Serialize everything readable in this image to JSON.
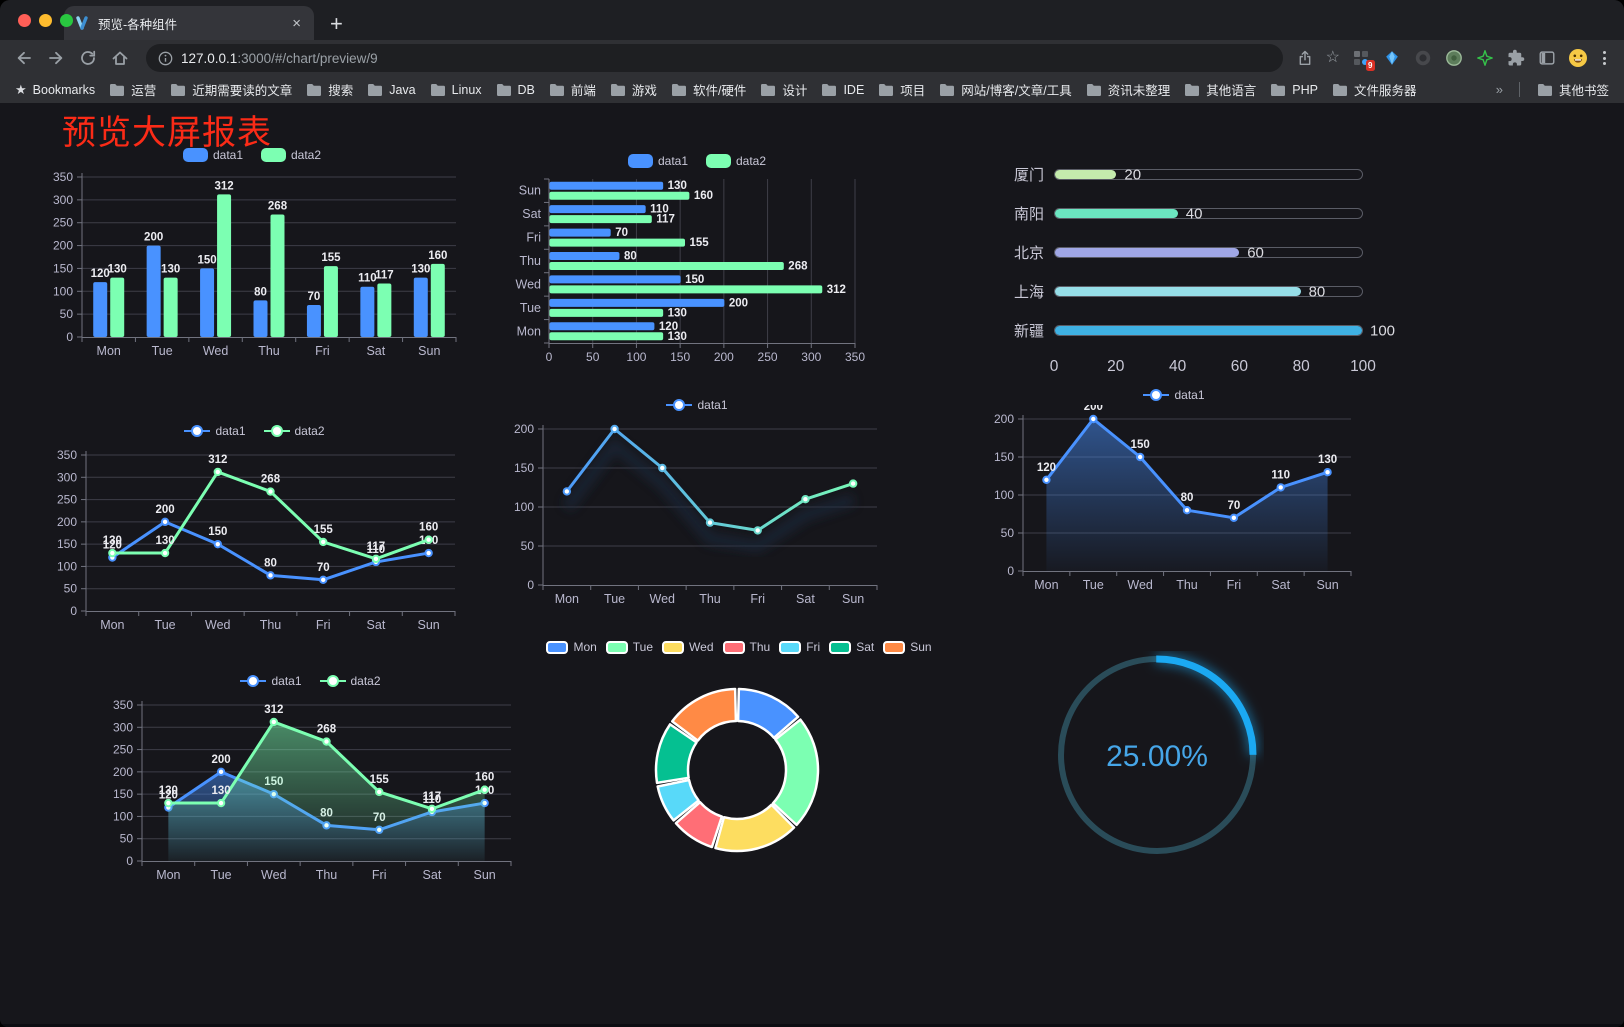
{
  "browser": {
    "tab_title": "预览-各种组件",
    "url_host": "127.0.0.1",
    "url_path": ":3000/#/chart/preview/9",
    "bookmarks_label": "Bookmarks",
    "bookmark_folders": [
      "运营",
      "近期需要读的文章",
      "搜索",
      "Java",
      "Linux",
      "DB",
      "前端",
      "游戏",
      "软件/硬件",
      "设计",
      "IDE",
      "项目",
      "网站/博客/文章/工具",
      "资讯未整理",
      "其他语言",
      "PHP",
      "文件服务器"
    ],
    "bookmarks_overflow": "»",
    "other_bookmarks_label": "其他书签",
    "extension_badge": "9",
    "traffic_colors": [
      "#ff5f57",
      "#febc2e",
      "#29c840"
    ]
  },
  "page": {
    "title": "预览大屏报表",
    "title_color": "#fb2b17",
    "background": "#16161b"
  },
  "theme": {
    "axis_label": "#b9b8ce",
    "grid_line": "rgba(185,184,206,0.25)",
    "axis_line": "#71737f",
    "value_label": "#ececf1",
    "palette": [
      "#4992ff",
      "#7cffb2",
      "#fddd60",
      "#ff6e76",
      "#58d9f9",
      "#05c091",
      "#ff8a45"
    ]
  },
  "chart_data": [
    {
      "id": "grouped-bar",
      "type": "bar",
      "legend": "rect",
      "categories": [
        "Mon",
        "Tue",
        "Wed",
        "Thu",
        "Fri",
        "Sat",
        "Sun"
      ],
      "series": [
        {
          "name": "data1",
          "color": "#4992ff",
          "values": [
            120,
            200,
            150,
            80,
            70,
            110,
            130
          ]
        },
        {
          "name": "data2",
          "color": "#7cffb2",
          "values": [
            130,
            130,
            312,
            268,
            155,
            117,
            160
          ]
        }
      ],
      "ylim": [
        0,
        350
      ],
      "ystep": 50,
      "value_labels": true
    },
    {
      "id": "horizontal-bar",
      "type": "hbar",
      "legend": "rect",
      "categories": [
        "Mon",
        "Tue",
        "Wed",
        "Thu",
        "Fri",
        "Sat",
        "Sun"
      ],
      "series": [
        {
          "name": "data1",
          "color": "#4992ff",
          "values": [
            120,
            200,
            150,
            80,
            70,
            110,
            130
          ]
        },
        {
          "name": "data2",
          "color": "#7cffb2",
          "values": [
            130,
            130,
            312,
            268,
            155,
            117,
            160
          ]
        }
      ],
      "xlim": [
        0,
        350
      ],
      "xstep": 50,
      "value_labels": true
    },
    {
      "id": "progress-bars",
      "type": "progress",
      "xlim": [
        0,
        100
      ],
      "xticks": [
        0,
        20,
        40,
        60,
        80,
        100
      ],
      "rows": [
        {
          "label": "厦门",
          "value": 20,
          "color": "#c4ebad"
        },
        {
          "label": "南阳",
          "value": 40,
          "color": "#6be6c1"
        },
        {
          "label": "北京",
          "value": 60,
          "color": "#a0a7e6"
        },
        {
          "label": "上海",
          "value": 80,
          "color": "#96dee8"
        },
        {
          "label": "新疆",
          "value": 100,
          "color": "#3fb1e3"
        }
      ]
    },
    {
      "id": "line-two-series",
      "type": "line",
      "legend": "line",
      "categories": [
        "Mon",
        "Tue",
        "Wed",
        "Thu",
        "Fri",
        "Sat",
        "Sun"
      ],
      "series": [
        {
          "name": "data1",
          "color": "#4992ff",
          "values": [
            120,
            200,
            150,
            80,
            70,
            110,
            130
          ]
        },
        {
          "name": "data2",
          "color": "#7cffb2",
          "values": [
            130,
            130,
            312,
            268,
            155,
            117,
            160
          ]
        }
      ],
      "ylim": [
        0,
        350
      ],
      "ystep": 50,
      "value_labels": true
    },
    {
      "id": "line-gradient",
      "type": "line",
      "legend": "line",
      "categories": [
        "Mon",
        "Tue",
        "Wed",
        "Thu",
        "Fri",
        "Sat",
        "Sun"
      ],
      "series": [
        {
          "name": "data1",
          "color": "#4992ff",
          "gradient": [
            "#4992ff",
            "#7cffb2"
          ],
          "shadow": true,
          "values": [
            120,
            200,
            150,
            80,
            70,
            110,
            130
          ]
        }
      ],
      "ylim": [
        0,
        200
      ],
      "ystep": 50,
      "value_labels": false
    },
    {
      "id": "line-area",
      "type": "line",
      "legend": "line",
      "categories": [
        "Mon",
        "Tue",
        "Wed",
        "Thu",
        "Fri",
        "Sat",
        "Sun"
      ],
      "series": [
        {
          "name": "data1",
          "color": "#4992ff",
          "area": true,
          "values": [
            120,
            200,
            150,
            80,
            70,
            110,
            130
          ]
        }
      ],
      "ylim": [
        0,
        200
      ],
      "ystep": 50,
      "value_labels": true
    },
    {
      "id": "line-two-areas",
      "type": "line",
      "legend": "line",
      "categories": [
        "Mon",
        "Tue",
        "Wed",
        "Thu",
        "Fri",
        "Sat",
        "Sun"
      ],
      "series": [
        {
          "name": "data1",
          "color": "#4992ff",
          "area": true,
          "values": [
            120,
            200,
            150,
            80,
            70,
            110,
            130
          ]
        },
        {
          "name": "data2",
          "color": "#7cffb2",
          "area": true,
          "values": [
            130,
            130,
            312,
            268,
            155,
            117,
            160
          ]
        }
      ],
      "ylim": [
        0,
        350
      ],
      "ystep": 50,
      "value_labels": true
    },
    {
      "id": "donut",
      "type": "pie",
      "legend": "pie",
      "items": [
        {
          "name": "Mon",
          "value": 120,
          "color": "#4992ff"
        },
        {
          "name": "Tue",
          "value": 200,
          "color": "#7cffb2"
        },
        {
          "name": "Wed",
          "value": 150,
          "color": "#fddd60"
        },
        {
          "name": "Thu",
          "value": 80,
          "color": "#ff6e76"
        },
        {
          "name": "Fri",
          "value": 70,
          "color": "#58d9f9"
        },
        {
          "name": "Sat",
          "value": 110,
          "color": "#05c091"
        },
        {
          "name": "Sun",
          "value": 130,
          "color": "#ff8a45"
        }
      ]
    },
    {
      "id": "gauge",
      "type": "gauge",
      "value": 25,
      "max": 100,
      "label": "25.00%",
      "track_color": "#2a4c59",
      "progress_color": "#1ba9f2",
      "text_color": "#46a6e8"
    }
  ]
}
